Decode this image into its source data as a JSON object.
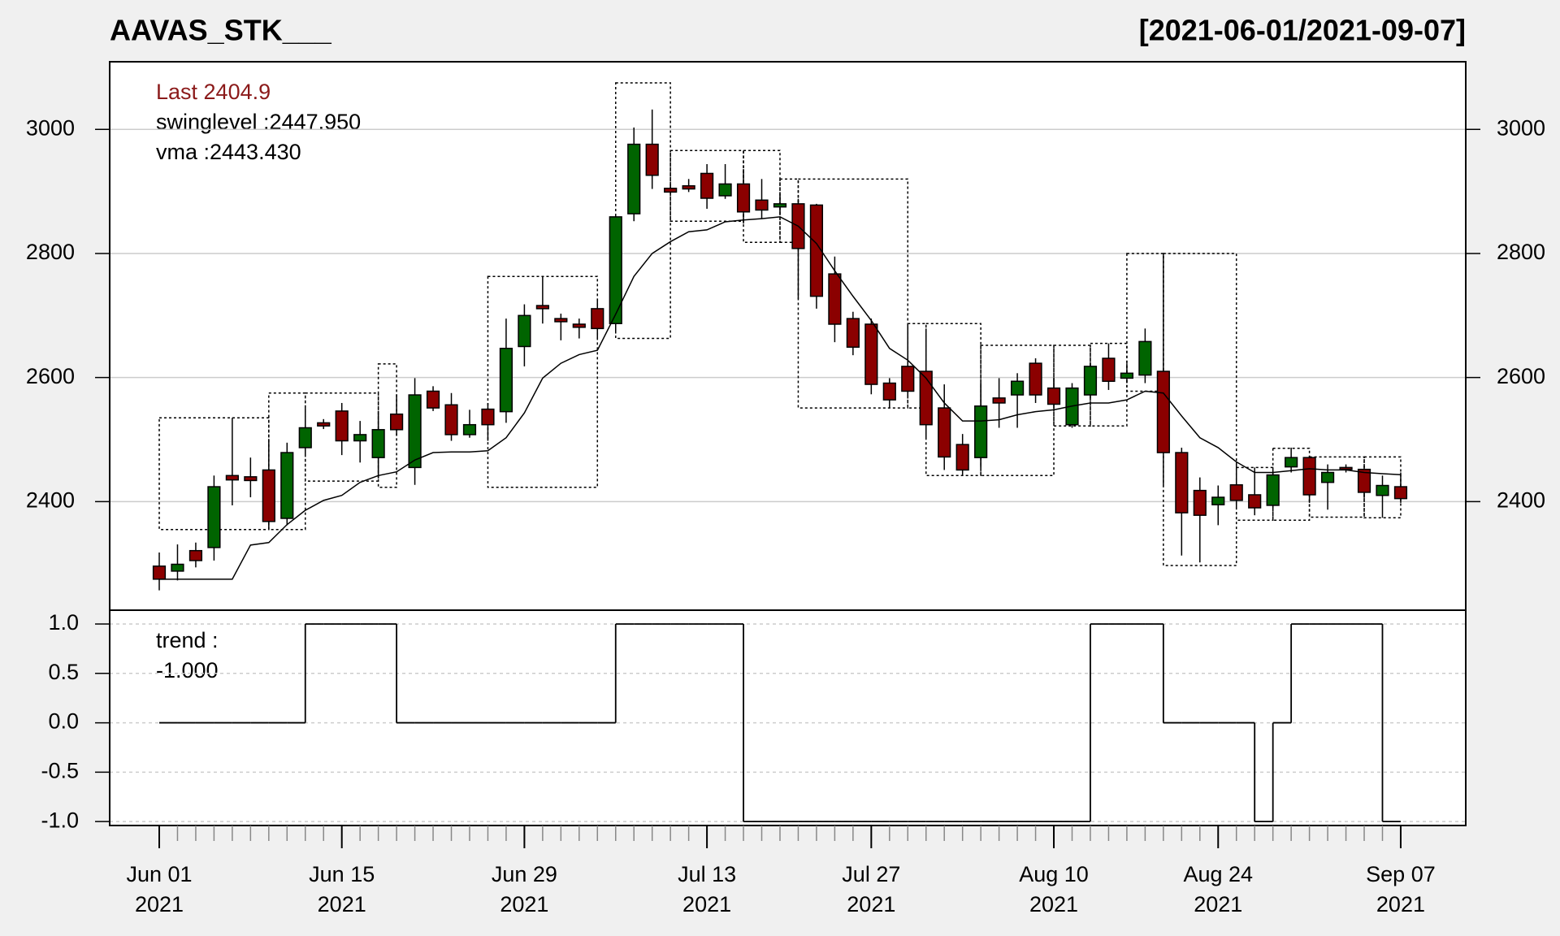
{
  "chart_data": {
    "type": "candlestick",
    "title": "AAVAS_STK___",
    "subtitle": "[2021-06-01/2021-09-07]",
    "annotations": [
      "Last 2404.9",
      "swinglevel :2447.950",
      "vma :2443.430"
    ],
    "x": [
      "2021-06-01",
      "2021-06-02",
      "2021-06-03",
      "2021-06-04",
      "2021-06-07",
      "2021-06-08",
      "2021-06-09",
      "2021-06-10",
      "2021-06-11",
      "2021-06-14",
      "2021-06-15",
      "2021-06-16",
      "2021-06-17",
      "2021-06-18",
      "2021-06-21",
      "2021-06-22",
      "2021-06-23",
      "2021-06-24",
      "2021-06-25",
      "2021-06-28",
      "2021-06-29",
      "2021-06-30",
      "2021-07-01",
      "2021-07-02",
      "2021-07-05",
      "2021-07-06",
      "2021-07-07",
      "2021-07-08",
      "2021-07-09",
      "2021-07-12",
      "2021-07-13",
      "2021-07-14",
      "2021-07-15",
      "2021-07-16",
      "2021-07-19",
      "2021-07-20",
      "2021-07-22",
      "2021-07-23",
      "2021-07-26",
      "2021-07-27",
      "2021-07-28",
      "2021-07-29",
      "2021-07-30",
      "2021-08-02",
      "2021-08-03",
      "2021-08-04",
      "2021-08-05",
      "2021-08-06",
      "2021-08-09",
      "2021-08-10",
      "2021-08-11",
      "2021-08-12",
      "2021-08-13",
      "2021-08-16",
      "2021-08-17",
      "2021-08-18",
      "2021-08-20",
      "2021-08-23",
      "2021-08-24",
      "2021-08-25",
      "2021-08-26",
      "2021-08-27",
      "2021-08-30",
      "2021-08-31",
      "2021-09-01",
      "2021-09-02",
      "2021-09-03",
      "2021-09-06",
      "2021-09-07"
    ],
    "open": [
      2296,
      2288,
      2321,
      2326,
      2442,
      2440,
      2451,
      2373,
      2487,
      2527,
      2546,
      2498,
      2471,
      2541,
      2455,
      2578,
      2556,
      2508,
      2549,
      2545,
      2650,
      2716,
      2695,
      2686,
      2711,
      2687,
      2864,
      2976,
      2905,
      2909,
      2929,
      2893,
      2912,
      2886,
      2875,
      2880,
      2878,
      2767,
      2695,
      2686,
      2591,
      2618,
      2610,
      2551,
      2492,
      2471,
      2567,
      2572,
      2623,
      2583,
      2524,
      2572,
      2631,
      2599,
      2604,
      2610,
      2479,
      2418,
      2395,
      2427,
      2411,
      2394,
      2456,
      2471,
      2431,
      2455,
      2452,
      2410,
      2424
    ],
    "high": [
      2318,
      2331,
      2334,
      2442,
      2535,
      2471,
      2501,
      2495,
      2551,
      2533,
      2559,
      2530,
      2546,
      2573,
      2599,
      2586,
      2575,
      2548,
      2559,
      2695,
      2718,
      2763,
      2703,
      2695,
      2727,
      2864,
      3003,
      3032,
      2912,
      2920,
      2944,
      2944,
      2936,
      2920,
      2896,
      2888,
      2880,
      2795,
      2706,
      2695,
      2599,
      2687,
      2679,
      2589,
      2509,
      2591,
      2599,
      2607,
      2631,
      2599,
      2591,
      2623,
      2655,
      2623,
      2679,
      2800,
      2487,
      2439,
      2426,
      2463,
      2455,
      2447,
      2487,
      2474,
      2460,
      2460,
      2458,
      2442,
      2447
    ],
    "low": [
      2257,
      2273,
      2294,
      2305,
      2394,
      2407,
      2355,
      2362,
      2474,
      2517,
      2475,
      2463,
      2439,
      2506,
      2427,
      2546,
      2498,
      2503,
      2498,
      2527,
      2618,
      2687,
      2660,
      2663,
      2663,
      2671,
      2852,
      2904,
      2896,
      2899,
      2872,
      2888,
      2848,
      2856,
      2864,
      2727,
      2711,
      2657,
      2636,
      2573,
      2551,
      2567,
      2503,
      2451,
      2442,
      2455,
      2519,
      2519,
      2559,
      2551,
      2519,
      2567,
      2580,
      2591,
      2591,
      2426,
      2313,
      2302,
      2362,
      2390,
      2378,
      2390,
      2447,
      2398,
      2387,
      2447,
      2406,
      2374,
      2398
    ],
    "close": [
      2275,
      2299,
      2305,
      2424,
      2435,
      2434,
      2368,
      2479,
      2519,
      2522,
      2498,
      2508,
      2516,
      2516,
      2572,
      2551,
      2508,
      2524,
      2524,
      2647,
      2700,
      2711,
      2690,
      2681,
      2679,
      2859,
      2976,
      2926,
      2899,
      2904,
      2889,
      2912,
      2867,
      2870,
      2880,
      2808,
      2731,
      2686,
      2649,
      2589,
      2564,
      2578,
      2524,
      2472,
      2451,
      2554,
      2559,
      2594,
      2572,
      2557,
      2583,
      2618,
      2594,
      2607,
      2658,
      2479,
      2382,
      2378,
      2407,
      2402,
      2390,
      2443,
      2471,
      2411,
      2447,
      2452,
      2415,
      2426,
      2404.9
    ],
    "up_color": "#006400",
    "down_color": "#8b0000",
    "vma": {
      "color": "#000000",
      "values": [
        2275,
        2275,
        2275,
        2275,
        2275,
        2330,
        2334,
        2363,
        2386,
        2402,
        2410,
        2431,
        2442,
        2448,
        2467,
        2479,
        2480,
        2480,
        2482,
        2503,
        2543,
        2599,
        2623,
        2637,
        2644,
        2702,
        2763,
        2800,
        2819,
        2835,
        2838,
        2851,
        2854,
        2856,
        2859,
        2844,
        2816,
        2772,
        2731,
        2692,
        2647,
        2628,
        2599,
        2559,
        2530,
        2530,
        2532,
        2540,
        2545,
        2548,
        2554,
        2559,
        2559,
        2564,
        2578,
        2575,
        2538,
        2503,
        2487,
        2464,
        2447,
        2447,
        2450,
        2453,
        2451,
        2451,
        2447,
        2445,
        2443.43
      ]
    },
    "swing_boxes": [
      {
        "start": "2021-06-01",
        "end": "2021-06-09",
        "low": 2355,
        "high": 2535
      },
      {
        "start": "2021-06-09",
        "end": "2021-06-11",
        "low": 2355,
        "high": 2575
      },
      {
        "start": "2021-06-11",
        "end": "2021-06-17",
        "low": 2433,
        "high": 2575
      },
      {
        "start": "2021-06-17",
        "end": "2021-06-18",
        "low": 2423,
        "high": 2622
      },
      {
        "start": "2021-06-25",
        "end": "2021-07-05",
        "low": 2423,
        "high": 2763
      },
      {
        "start": "2021-07-06",
        "end": "2021-07-09",
        "low": 2663,
        "high": 3075
      },
      {
        "start": "2021-07-09",
        "end": "2021-07-15",
        "low": 2852,
        "high": 2966
      },
      {
        "start": "2021-07-15",
        "end": "2021-07-19",
        "low": 2818,
        "high": 2966
      },
      {
        "start": "2021-07-19",
        "end": "2021-07-20",
        "low": 2818,
        "high": 2920
      },
      {
        "start": "2021-07-20",
        "end": "2021-07-29",
        "low": 2551,
        "high": 2920
      },
      {
        "start": "2021-07-29",
        "end": "2021-07-30",
        "low": 2551,
        "high": 2687
      },
      {
        "start": "2021-07-30",
        "end": "2021-08-04",
        "low": 2442,
        "high": 2687
      },
      {
        "start": "2021-08-04",
        "end": "2021-08-10",
        "low": 2442,
        "high": 2652
      },
      {
        "start": "2021-08-10",
        "end": "2021-08-12",
        "low": 2522,
        "high": 2652
      },
      {
        "start": "2021-08-12",
        "end": "2021-08-16",
        "low": 2522,
        "high": 2655
      },
      {
        "start": "2021-08-16",
        "end": "2021-08-18",
        "low": 2578,
        "high": 2800
      },
      {
        "start": "2021-08-18",
        "end": "2021-08-25",
        "low": 2297,
        "high": 2800
      },
      {
        "start": "2021-08-25",
        "end": "2021-08-27",
        "low": 2370,
        "high": 2455
      },
      {
        "start": "2021-08-27",
        "end": "2021-08-31",
        "low": 2370,
        "high": 2486
      },
      {
        "start": "2021-08-31",
        "end": "2021-09-03",
        "low": 2375,
        "high": 2472
      },
      {
        "start": "2021-09-03",
        "end": "2021-09-07",
        "low": 2374,
        "high": 2472
      }
    ],
    "ylim": [
      2225,
      3109
    ],
    "yticks": [
      2400,
      2600,
      2800,
      3000
    ],
    "grid": true,
    "xticks": [
      {
        "value": "2021-06-01",
        "label": [
          "Jun 01",
          "2021"
        ]
      },
      {
        "value": "2021-06-15",
        "label": [
          "Jun 15",
          "2021"
        ]
      },
      {
        "value": "2021-06-29",
        "label": [
          "Jun 29",
          "2021"
        ]
      },
      {
        "value": "2021-07-13",
        "label": [
          "Jul 13",
          "2021"
        ]
      },
      {
        "value": "2021-07-27",
        "label": [
          "Jul 27",
          "2021"
        ]
      },
      {
        "value": "2021-08-10",
        "label": [
          "Aug 10",
          "2021"
        ]
      },
      {
        "value": "2021-08-24",
        "label": [
          "Aug 24",
          "2021"
        ]
      },
      {
        "value": "2021-09-07",
        "label": [
          "Sep 07",
          "2021"
        ]
      }
    ],
    "indicator": {
      "type": "step",
      "annotations": [
        "trend :",
        "-1.000"
      ],
      "color": "#000000",
      "values": [
        0,
        0,
        0,
        0,
        0,
        0,
        0,
        0,
        1,
        1,
        1,
        1,
        1,
        0,
        0,
        0,
        0,
        0,
        0,
        0,
        0,
        0,
        0,
        0,
        0,
        1,
        1,
        1,
        1,
        1,
        1,
        1,
        -1,
        -1,
        -1,
        -1,
        -1,
        -1,
        -1,
        -1,
        -1,
        -1,
        -1,
        -1,
        -1,
        -1,
        -1,
        -1,
        -1,
        -1,
        -1,
        1,
        1,
        1,
        1,
        0,
        0,
        0,
        0,
        0,
        -1,
        0,
        1,
        1,
        1,
        1,
        1,
        -1,
        -1
      ],
      "ylim": [
        -1.04,
        1.14
      ],
      "yticks": [
        {
          "value": 1,
          "label": "1.0"
        },
        {
          "value": 0.5,
          "label": "0.5"
        },
        {
          "value": 0,
          "label": "0.0"
        },
        {
          "value": -0.5,
          "label": "-0.5"
        },
        {
          "value": -1,
          "label": "-1.0"
        }
      ],
      "grid": true
    }
  }
}
